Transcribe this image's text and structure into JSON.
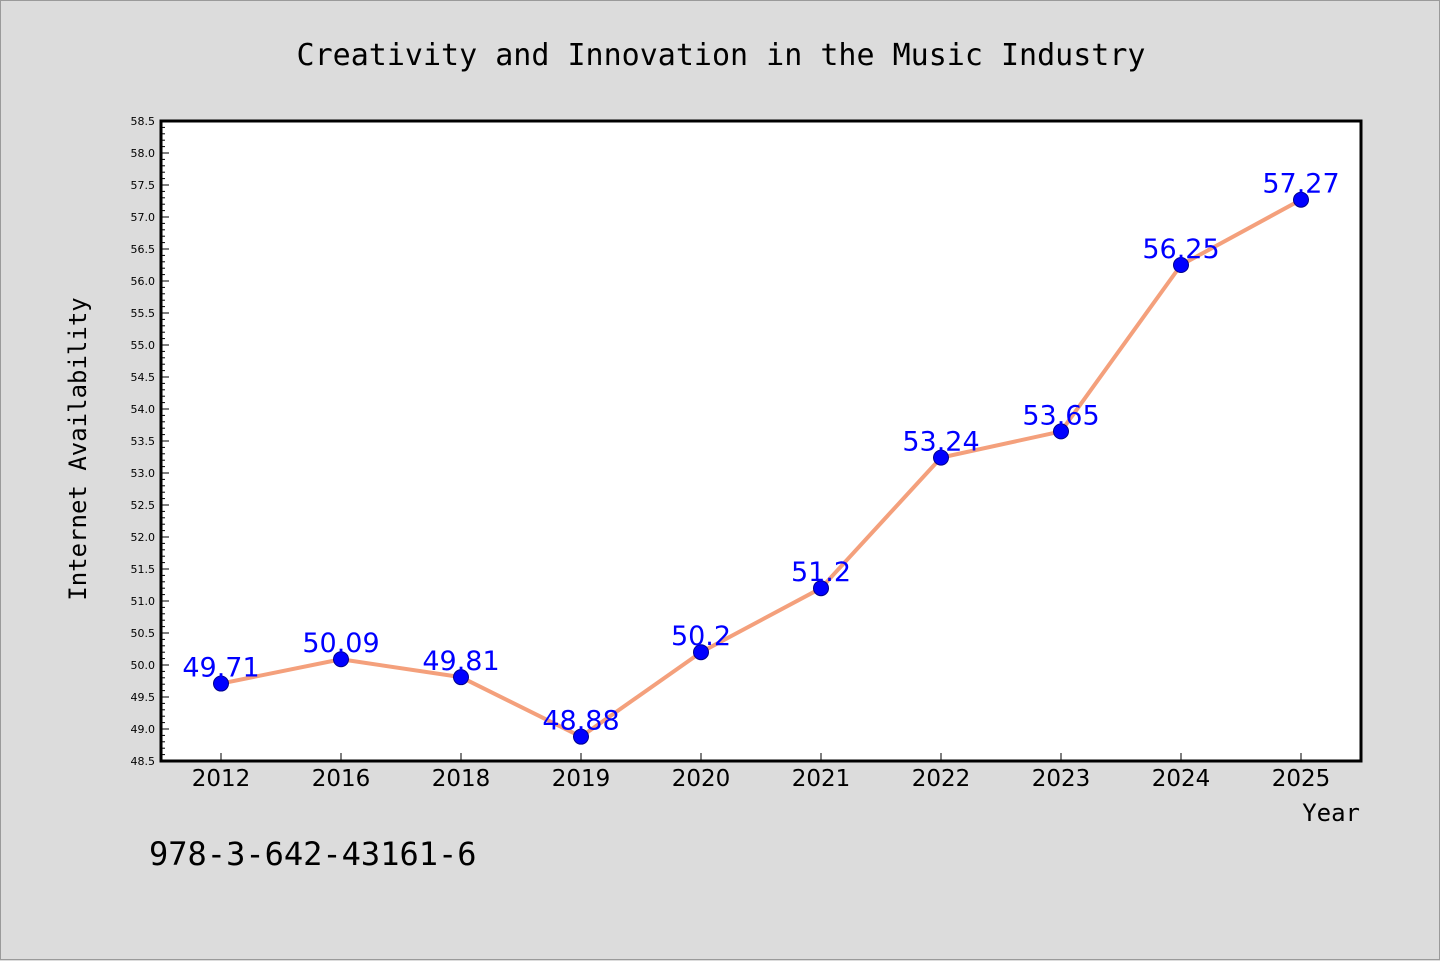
{
  "chart_data": {
    "type": "line",
    "title": "Creativity and Innovation in the Music Industry",
    "xlabel": "Year",
    "ylabel": "Internet Availability",
    "categories": [
      "2012",
      "2016",
      "2018",
      "2019",
      "2020",
      "2021",
      "2022",
      "2023",
      "2024",
      "2025"
    ],
    "values": [
      49.71,
      50.09,
      49.81,
      48.88,
      50.2,
      51.2,
      53.24,
      53.65,
      56.25,
      57.27
    ],
    "data_labels": [
      "49.71",
      "50.09",
      "49.81",
      "48.88",
      "50.2",
      "51.2",
      "53.24",
      "53.65",
      "56.25",
      "57.27"
    ],
    "ylim": [
      48.5,
      58.5
    ],
    "ytick_step": 0.5,
    "grid": false,
    "line_color": "#f4a07c",
    "marker_color": "#0000ff",
    "label_color": "#0000ff",
    "background_color": "#dcdcdc",
    "plot_background": "#ffffff"
  },
  "caption": "978-3-642-43161-6"
}
